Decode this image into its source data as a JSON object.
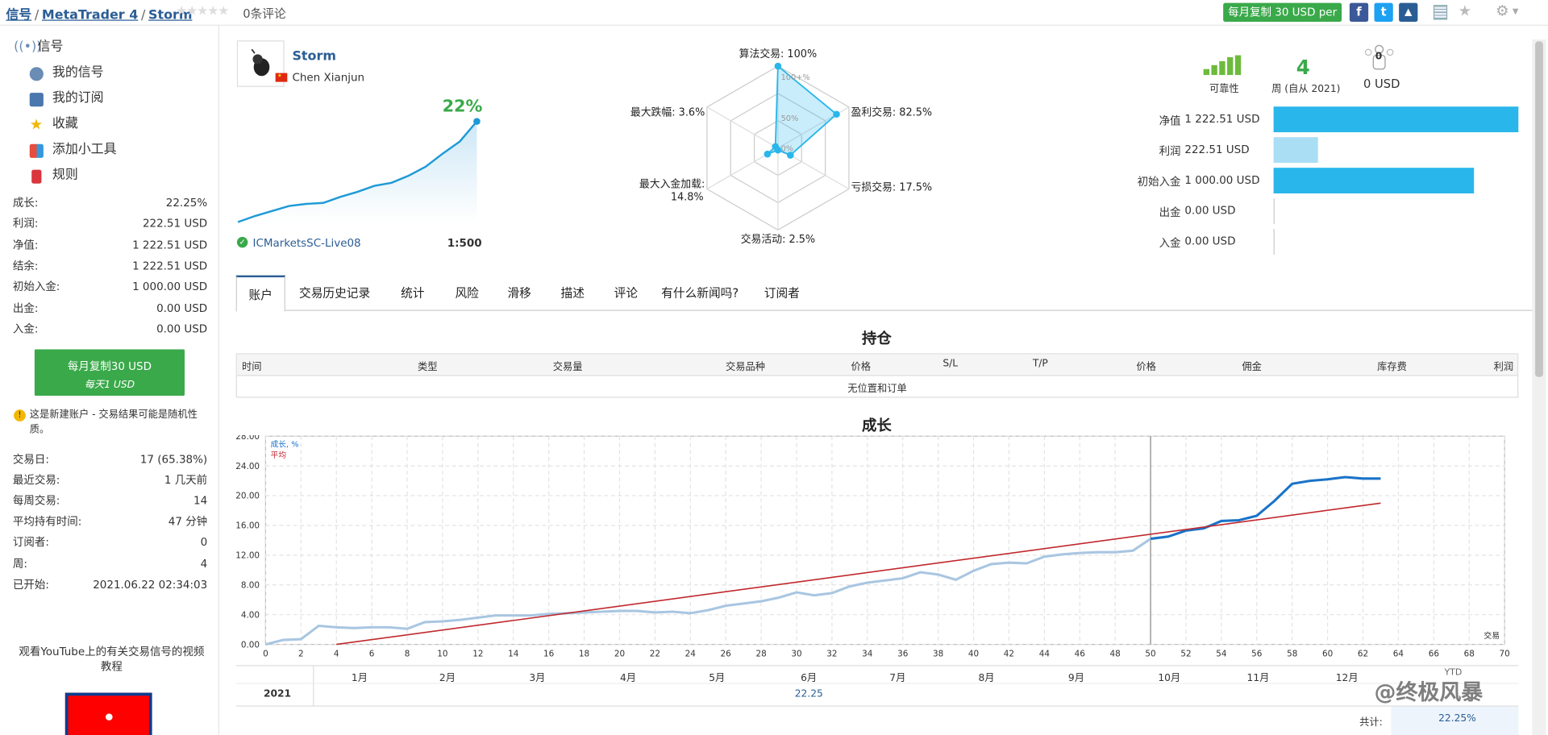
{
  "breadcrumb": {
    "items": [
      "信号",
      "MetaTrader 4",
      "Storm"
    ]
  },
  "rating": {
    "reviews": "0条评论"
  },
  "topbar": {
    "copy_button": "每月复制 30 USD per"
  },
  "sidebar": {
    "nav": [
      {
        "label": "信号",
        "icon": "signal-icon"
      },
      {
        "label": "我的信号",
        "icon": "my-signal-icon"
      },
      {
        "label": "我的订阅",
        "icon": "subscription-icon"
      },
      {
        "label": "收藏",
        "icon": "star-icon"
      },
      {
        "label": "添加小工具",
        "icon": "widget-icon"
      },
      {
        "label": "规则",
        "icon": "bookmark-icon"
      }
    ],
    "stats1": [
      {
        "k": "成长:",
        "v": "22.25%"
      },
      {
        "k": "利润:",
        "v": "222.51 USD"
      },
      {
        "k": "净值:",
        "v": "1 222.51 USD"
      },
      {
        "k": "结余:",
        "v": "1 222.51 USD"
      },
      {
        "k": "初始入金:",
        "v": "1 000.00 USD"
      },
      {
        "k": "出金:",
        "v": "0.00 USD"
      },
      {
        "k": "入金:",
        "v": "0.00 USD"
      }
    ],
    "copy_line1": "每月复制30 USD",
    "copy_line2": "每天1 USD",
    "warning": "这是新建账户 - 交易结果可能是随机性质。",
    "stats2": [
      {
        "k": "交易日:",
        "v": "17 (65.38%)"
      },
      {
        "k": "最近交易:",
        "v": "1 几天前"
      },
      {
        "k": "每周交易:",
        "v": "14"
      },
      {
        "k": "平均持有时间:",
        "v": "47 分钟"
      },
      {
        "k": "订阅者:",
        "v": "0"
      },
      {
        "k": "周:",
        "v": "4"
      },
      {
        "k": "已开始:",
        "v": "2021.06.22 02:34:03"
      }
    ],
    "youtube": "观看YouTube上的有关交易信号的视频教程"
  },
  "profile": {
    "name": "Storm",
    "author": "Chen Xianjun",
    "growth": "22%",
    "server": "ICMarketsSC-Live08",
    "leverage": "1:500"
  },
  "mini_growth": [
    0,
    6,
    11,
    16,
    18,
    19,
    25,
    30,
    36,
    39,
    46,
    55,
    68,
    80,
    100
  ],
  "radar": {
    "labels": [
      "算法交易: 100%",
      "盈利交易: 82.5%",
      "亏损交易: 17.5%",
      "交易活动: 2.5%",
      "最大入金加载: 14.8%",
      "最大跌幅: 3.6%"
    ],
    "label_center": "0%",
    "label_mid": "50%",
    "label_top": "100+%",
    "values": [
      1.0,
      0.825,
      0.175,
      0.025,
      0.148,
      0.036
    ]
  },
  "summary": {
    "reliability": "可靠性",
    "weeks": "4",
    "weeks_label": "周 (自从 2021)",
    "subscribers_value": "0",
    "subscribers_usd": "0 USD",
    "rows": [
      {
        "k": "净值",
        "v": "1 222.51 USD",
        "pct": 1.0,
        "color": "#29b6ea"
      },
      {
        "k": "利润",
        "v": "222.51 USD",
        "pct": 0.182,
        "color": "#a9def5"
      },
      {
        "k": "初始入金",
        "v": "1 000.00 USD",
        "pct": 0.818,
        "color": "#29b6ea"
      },
      {
        "k": "出金",
        "v": "0.00 USD",
        "pct": 0,
        "color": "#29b6ea"
      },
      {
        "k": "入金",
        "v": "0.00 USD",
        "pct": 0,
        "color": "#29b6ea"
      }
    ]
  },
  "tabs": [
    "账户",
    "交易历史记录",
    "统计",
    "风险",
    "滑移",
    "描述",
    "评论",
    "有什么新闻吗?",
    "订阅者"
  ],
  "positions": {
    "title": "持仓",
    "headers": [
      "时间",
      "类型",
      "交易量",
      "交易品种",
      "价格",
      "S/L",
      "T/P",
      "价格",
      "佣金",
      "库存费",
      "利润"
    ],
    "empty": "无位置和订单"
  },
  "growth_section_title": "成长",
  "chart_data": {
    "type": "line",
    "x_label": "交易",
    "ylim": [
      0,
      28
    ],
    "xlim": [
      0,
      70
    ],
    "y_ticks": [
      "0.00",
      "4.00",
      "8.00",
      "12.00",
      "16.00",
      "20.00",
      "24.00",
      "28.00"
    ],
    "x_ticks": [
      "0",
      "2",
      "4",
      "6",
      "8",
      "10",
      "12",
      "14",
      "16",
      "18",
      "20",
      "22",
      "24",
      "26",
      "28",
      "30",
      "32",
      "34",
      "36",
      "38",
      "40",
      "42",
      "44",
      "46",
      "48",
      "50",
      "52",
      "54",
      "56",
      "58",
      "60",
      "62",
      "64",
      "66",
      "68",
      "70"
    ],
    "legend": [
      "成长, %",
      "平均"
    ],
    "series": [
      {
        "name": "成长, %",
        "x": [
          0,
          1,
          2,
          3,
          4,
          5,
          6,
          7,
          8,
          9,
          10,
          11,
          12,
          13,
          14,
          15,
          16,
          17,
          18,
          19,
          20,
          21,
          22,
          23,
          24,
          25,
          26,
          27,
          28,
          29,
          30,
          31,
          32,
          33,
          34,
          35,
          36,
          37,
          38,
          39,
          40,
          41,
          42,
          43,
          44,
          45,
          46,
          47,
          48,
          49,
          50,
          51,
          52,
          53,
          54,
          55,
          56,
          57,
          58,
          59,
          60,
          61,
          62,
          63
        ],
        "y": [
          0,
          0.6,
          0.7,
          2.5,
          2.3,
          2.2,
          2.3,
          2.3,
          2.1,
          3.0,
          3.1,
          3.3,
          3.6,
          3.9,
          3.9,
          3.9,
          4.1,
          4.2,
          4.3,
          4.4,
          4.5,
          4.5,
          4.3,
          4.4,
          4.2,
          4.6,
          5.2,
          5.5,
          5.8,
          6.3,
          7.0,
          6.6,
          6.9,
          7.8,
          8.3,
          8.6,
          8.9,
          9.7,
          9.4,
          8.7,
          9.9,
          10.8,
          11.0,
          10.9,
          11.8,
          12.1,
          12.3,
          12.4,
          12.4,
          12.6,
          14.2,
          14.5,
          15.3,
          15.6,
          16.6,
          16.7,
          17.3,
          19.3,
          21.6,
          22.0,
          22.2,
          22.5,
          22.3,
          22.3
        ]
      },
      {
        "name": "平均",
        "x": [
          4,
          63
        ],
        "y": [
          0,
          19.0
        ]
      }
    ],
    "months": [
      "1月",
      "2月",
      "3月",
      "4月",
      "5月",
      "6月",
      "7月",
      "8月",
      "9月",
      "10月",
      "11月",
      "12月"
    ]
  },
  "yearly": {
    "year": "2021",
    "value": "22.25",
    "ytd": "YTD",
    "total_label": "共计:",
    "total": "22.25%"
  },
  "watermark": "@终极风暴"
}
